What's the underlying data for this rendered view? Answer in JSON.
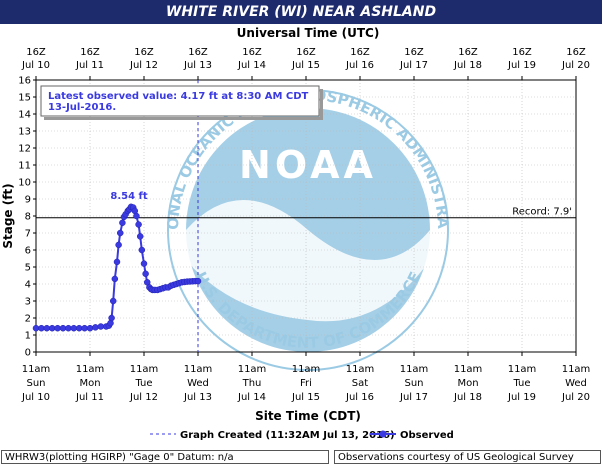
{
  "title": "WHITE RIVER (WI) NEAR ASHLAND",
  "colors": {
    "title_bg": "#1d2a6b",
    "series": "#3a3ae0",
    "axis_text": "#000000",
    "grid": "#bbbbbb",
    "noaa_logo": "#7ab9dc"
  },
  "chart_data": {
    "type": "line",
    "top_axis_label": "Universal Time (UTC)",
    "bottom_axis_label": "Site Time (CDT)",
    "ylabel": "Stage (ft)",
    "ylim": [
      0,
      16
    ],
    "y_ticks": [
      "0",
      "1",
      "2",
      "3",
      "4",
      "5",
      "6",
      "7",
      "8",
      "9",
      "10",
      "11",
      "12",
      "13",
      "14",
      "15",
      "16"
    ],
    "grid": true,
    "top_ticks": [
      [
        "16Z",
        "Jul 10"
      ],
      [
        "16Z",
        "Jul 11"
      ],
      [
        "16Z",
        "Jul 12"
      ],
      [
        "16Z",
        "Jul 13"
      ],
      [
        "16Z",
        "Jul 14"
      ],
      [
        "16Z",
        "Jul 15"
      ],
      [
        "16Z",
        "Jul 16"
      ],
      [
        "16Z",
        "Jul 17"
      ],
      [
        "16Z",
        "Jul 18"
      ],
      [
        "16Z",
        "Jul 19"
      ],
      [
        "16Z",
        "Jul 20"
      ]
    ],
    "bottom_ticks": [
      [
        "11am",
        "Sun",
        "Jul 10"
      ],
      [
        "11am",
        "Mon",
        "Jul 11"
      ],
      [
        "11am",
        "Tue",
        "Jul 12"
      ],
      [
        "11am",
        "Wed",
        "Jul 13"
      ],
      [
        "11am",
        "Thu",
        "Jul 14"
      ],
      [
        "11am",
        "Fri",
        "Jul 15"
      ],
      [
        "11am",
        "Sat",
        "Jul 16"
      ],
      [
        "11am",
        "Sun",
        "Jul 17"
      ],
      [
        "11am",
        "Mon",
        "Jul 18"
      ],
      [
        "11am",
        "Tue",
        "Jul 19"
      ],
      [
        "11am",
        "Wed",
        "Jul 20"
      ]
    ],
    "x_range_days": [
      0,
      10
    ],
    "observed": {
      "name": "Observed",
      "x_days": [
        0,
        0.1,
        0.2,
        0.3,
        0.4,
        0.5,
        0.6,
        0.7,
        0.8,
        0.9,
        1.0,
        1.1,
        1.2,
        1.3,
        1.35,
        1.38,
        1.4,
        1.43,
        1.46,
        1.5,
        1.53,
        1.56,
        1.6,
        1.63,
        1.66,
        1.7,
        1.73,
        1.76,
        1.8,
        1.83,
        1.86,
        1.9,
        1.93,
        1.96,
        2.0,
        2.03,
        2.06,
        2.1,
        2.13,
        2.16,
        2.2,
        2.25,
        2.3,
        2.35,
        2.4,
        2.45,
        2.5,
        2.55,
        2.6,
        2.65,
        2.7,
        2.75,
        2.8,
        2.85,
        2.9,
        2.95,
        3.0
      ],
      "stage_ft": [
        1.4,
        1.4,
        1.4,
        1.4,
        1.4,
        1.4,
        1.4,
        1.4,
        1.4,
        1.4,
        1.4,
        1.45,
        1.5,
        1.5,
        1.55,
        1.7,
        2.0,
        3.0,
        4.3,
        5.3,
        6.3,
        7.0,
        7.6,
        7.95,
        8.1,
        8.3,
        8.4,
        8.54,
        8.5,
        8.3,
        8.0,
        7.5,
        6.8,
        6.0,
        5.2,
        4.6,
        4.1,
        3.8,
        3.7,
        3.65,
        3.65,
        3.65,
        3.7,
        3.75,
        3.8,
        3.8,
        3.9,
        3.95,
        4.0,
        4.05,
        4.1,
        4.12,
        4.14,
        4.15,
        4.16,
        4.17,
        4.17
      ]
    },
    "peak_label": "8.54 ft",
    "record": {
      "value": 7.9,
      "label": "Record: 7.9'"
    },
    "graph_created_x_days": 3.0,
    "latest_observation": {
      "line1": "Latest observed value: 4.17 ft at 8:30 AM CDT",
      "line2": "13-Jul-2016."
    },
    "legend": {
      "created_label": "Graph Created (11:32AM Jul 13, 2016)",
      "observed_label": "Observed"
    }
  },
  "footer": {
    "left": "WHRW3(plotting HGIRP) \"Gage 0\" Datum: n/a",
    "right": "Observations courtesy of US Geological Survey"
  },
  "watermark": {
    "center_text": "NOAA",
    "ring_text": "NATIONAL OCEANIC AND ATMOSPHERIC ADMINISTRATION",
    "bottom_ring_text": "U.S. DEPARTMENT OF COMMERCE"
  }
}
